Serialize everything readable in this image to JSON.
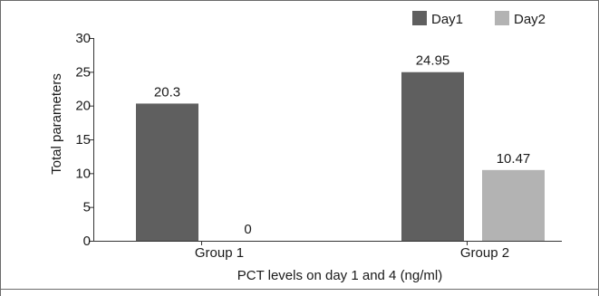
{
  "chart_data": {
    "type": "bar",
    "title": "",
    "xlabel": "PCT levels on day 1 and 4 (ng/ml)",
    "ylabel": "Total parameters",
    "categories": [
      "Group 1",
      "Group 2"
    ],
    "series": [
      {
        "name": "Day1",
        "values": [
          20.3,
          24.95
        ],
        "labels": [
          "20.3",
          "24.95"
        ],
        "color": "#5f5f5f"
      },
      {
        "name": "Day2",
        "values": [
          0,
          10.47
        ],
        "labels": [
          "0",
          "10.47"
        ],
        "color": "#b3b3b3"
      }
    ],
    "ylim": [
      0,
      30
    ],
    "yticks": [
      0,
      5,
      10,
      15,
      20,
      25,
      30
    ],
    "grid": false,
    "legend": "top-right"
  }
}
